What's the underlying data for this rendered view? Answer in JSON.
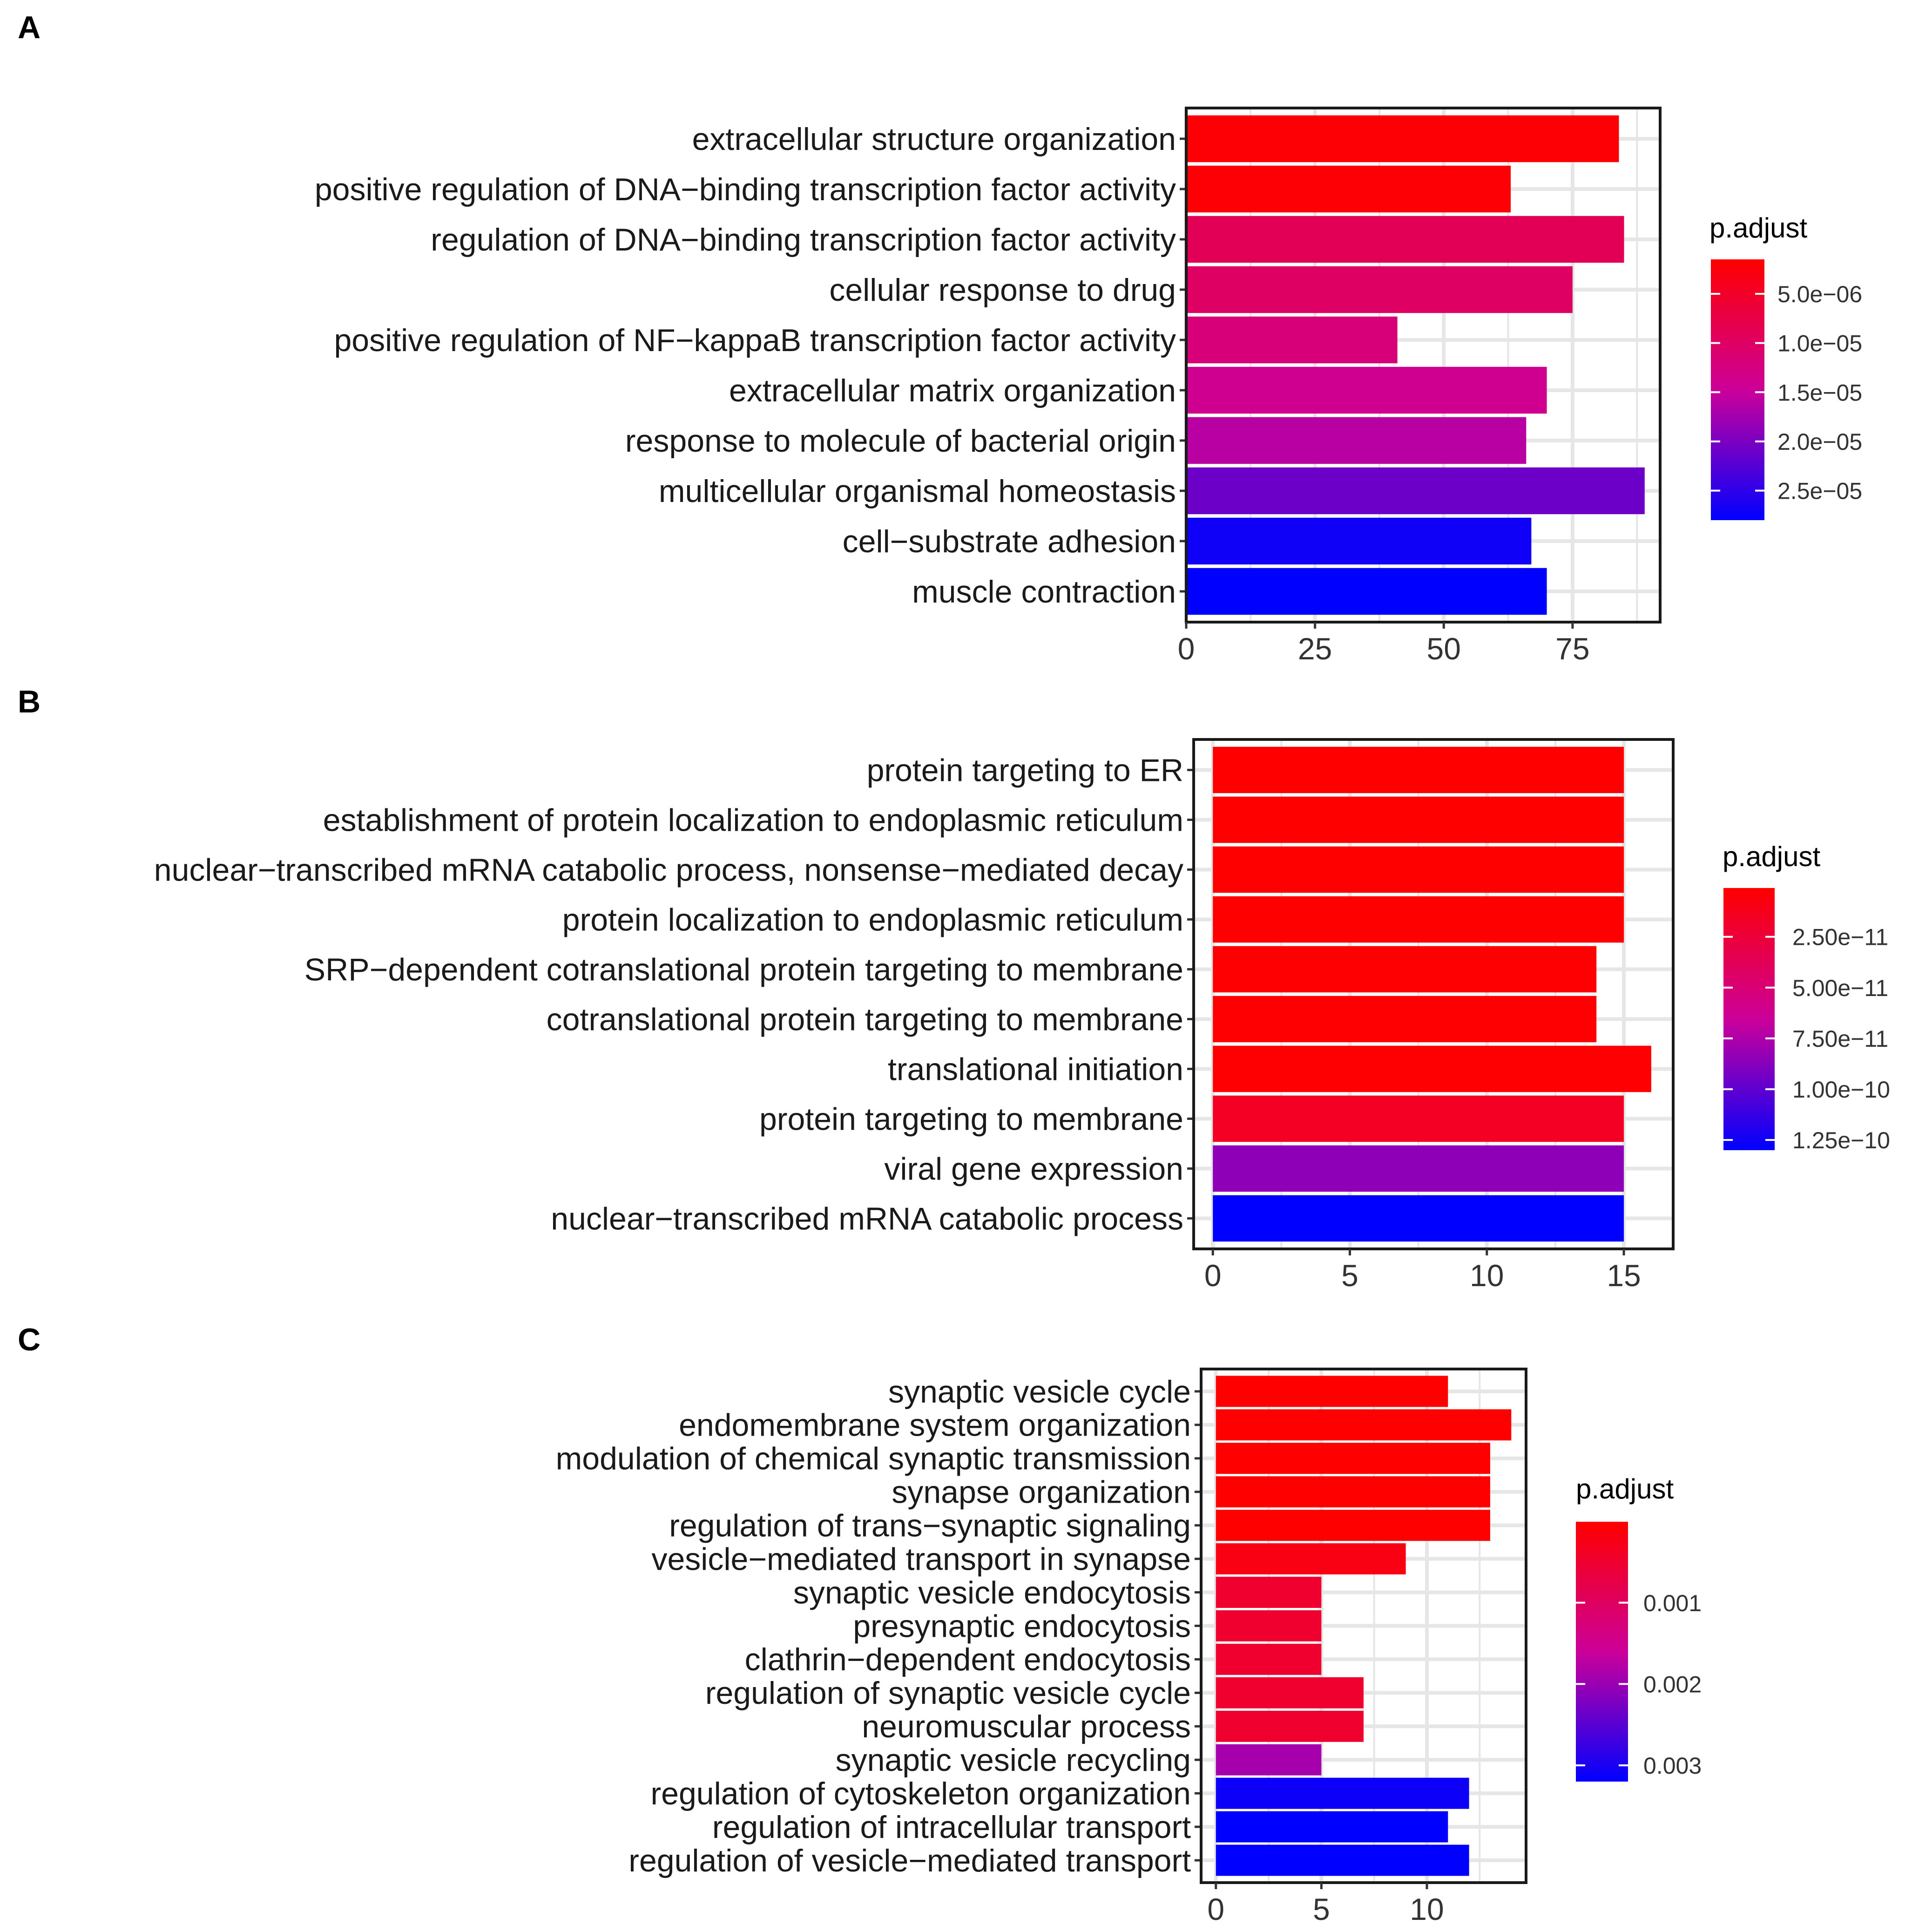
{
  "chart_data": [
    {
      "panel": "A",
      "type": "bar",
      "orientation": "horizontal",
      "categories": [
        "extracellular structure organization",
        "positive regulation of DNA−binding transcription factor activity",
        "regulation of DNA−binding transcription factor activity",
        "cellular response to drug",
        "positive regulation of NF−kappaB transcription factor activity",
        "extracellular matrix organization",
        "response to molecule of bacterial origin",
        "multicellular organismal homeostasis",
        "cell−substrate adhesion",
        "muscle contraction"
      ],
      "values": [
        84,
        63,
        85,
        75,
        41,
        70,
        66,
        89,
        67,
        70
      ],
      "p_adjust": [
        2e-06,
        2e-06,
        9e-06,
        1e-05,
        1.2e-05,
        1.4e-05,
        1.6e-05,
        2.1e-05,
        2.7e-05,
        2.8e-05
      ],
      "xlim": [
        0,
        92
      ],
      "xticks": [
        0,
        25,
        50,
        75
      ],
      "xtick_labels": [
        "0",
        "25",
        "50",
        "75"
      ],
      "legend": {
        "title": "p.adjust",
        "range": [
          1.5e-06,
          2.8e-05
        ],
        "ticks": [
          5e-06,
          1e-05,
          1.5e-05,
          2e-05,
          2.5e-05
        ],
        "labels": [
          "5.0e−06",
          "1.0e−05",
          "1.5e−05",
          "2.0e−05",
          "2.5e−05"
        ]
      }
    },
    {
      "panel": "B",
      "type": "bar",
      "orientation": "horizontal",
      "categories": [
        "protein targeting to ER",
        "establishment of protein localization to endoplasmic reticulum",
        "nuclear−transcribed mRNA catabolic process, nonsense−mediated decay",
        "protein localization to endoplasmic reticulum",
        "SRP−dependent cotranslational protein targeting to membrane",
        "cotranslational protein targeting to membrane",
        "translational initiation",
        "protein targeting to membrane",
        "viral gene expression",
        "nuclear−transcribed mRNA catabolic process"
      ],
      "values": [
        15,
        15,
        15,
        15,
        14,
        14,
        16,
        15,
        15,
        15
      ],
      "p_adjust": [
        1e-12,
        1e-12,
        1e-12,
        1e-12,
        2e-12,
        2e-12,
        2e-12,
        1.6e-11,
        8.5e-11,
        1.3e-10
      ],
      "xlim": [
        -0.7,
        16.8
      ],
      "xticks": [
        0,
        5,
        10,
        15
      ],
      "xtick_labels": [
        "0",
        "5",
        "10",
        "15"
      ],
      "legend": {
        "title": "p.adjust",
        "range": [
          1e-12,
          1.3e-10
        ],
        "ticks": [
          2.5e-11,
          5e-11,
          7.5e-11,
          1e-10,
          1.25e-10
        ],
        "labels": [
          "2.50e−11",
          "5.00e−11",
          "7.50e−11",
          "1.00e−10",
          "1.25e−10"
        ]
      }
    },
    {
      "panel": "C",
      "type": "bar",
      "orientation": "horizontal",
      "categories": [
        "synaptic vesicle cycle",
        "endomembrane system organization",
        "modulation of chemical synaptic transmission",
        "synapse organization",
        "regulation of trans−synaptic signaling",
        "vesicle−mediated transport in synapse",
        "synaptic vesicle endocytosis",
        "presynaptic endocytosis",
        "clathrin−dependent endocytosis",
        "regulation of synaptic vesicle cycle",
        "neuromuscular process",
        "synaptic vesicle recycling",
        "regulation of cytoskeleton organization",
        "regulation of intracellular transport",
        "regulation of vesicle−mediated transport"
      ],
      "values": [
        11,
        14,
        13,
        13,
        13,
        9,
        5,
        5,
        5,
        7,
        7,
        5,
        12,
        11,
        12
      ],
      "p_adjust": [
        5e-06,
        5e-06,
        5e-06,
        5e-06,
        5e-06,
        0.0002,
        0.0005,
        0.0005,
        0.0005,
        0.0005,
        0.0005,
        0.0019,
        0.0031,
        0.0032,
        0.0032
      ],
      "xlim": [
        -0.7,
        14.7
      ],
      "xticks": [
        0,
        5,
        10
      ],
      "xtick_labels": [
        "0",
        "5",
        "10"
      ],
      "legend": {
        "title": "p.adjust",
        "range": [
          5e-06,
          0.0032
        ],
        "ticks": [
          0.001,
          0.002,
          0.003
        ],
        "labels": [
          "0.001",
          "0.002",
          "0.003"
        ]
      }
    }
  ]
}
